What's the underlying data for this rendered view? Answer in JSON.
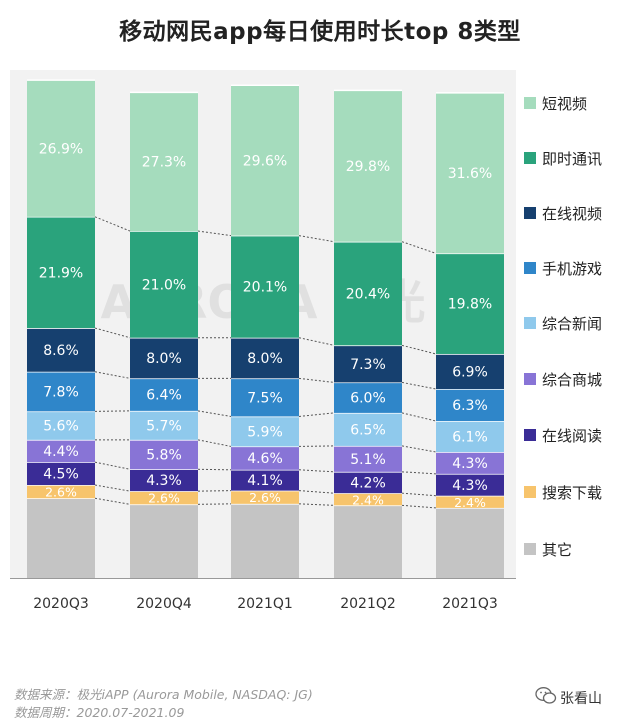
{
  "title": "移动网民app每日使用时长top 8类型",
  "footer": {
    "source": "数据来源：极光iAPP (Aurora Mobile, NASDAQ: JG)",
    "period": "数据周期：2020.07-2021.09",
    "brand": "张看山",
    "icon": "wechat-icon"
  },
  "watermark": "AURORA 极光",
  "chart_data": {
    "type": "bar",
    "stacked": true,
    "percent_stacked": true,
    "categories": [
      "2020Q3",
      "2020Q4",
      "2021Q1",
      "2021Q2",
      "2021Q3"
    ],
    "legend_position": "right",
    "series": [
      {
        "name": "其它",
        "color": "#c4c4c4",
        "values": [
          15.7,
          14.5,
          14.6,
          14.3,
          13.8
        ],
        "labels": [
          "",
          "",
          "",
          "",
          ""
        ]
      },
      {
        "name": "搜索下载",
        "color": "#f7c46c",
        "values": [
          2.6,
          2.6,
          2.6,
          2.4,
          2.4
        ],
        "labels": [
          "2.6%",
          "2.6%",
          "2.6%",
          "2.4%",
          "2.4%"
        ]
      },
      {
        "name": "在线阅读",
        "color": "#3a2c96",
        "values": [
          4.5,
          4.3,
          4.1,
          4.2,
          4.3
        ],
        "labels": [
          "4.5%",
          "4.3%",
          "4.1%",
          "4.2%",
          "4.3%"
        ]
      },
      {
        "name": "综合商城",
        "color": "#8874d6",
        "values": [
          4.4,
          5.8,
          4.6,
          5.1,
          4.3
        ],
        "labels": [
          "4.4%",
          "5.8%",
          "4.6%",
          "5.1%",
          "4.3%"
        ]
      },
      {
        "name": "综合新闻",
        "color": "#8fc9ec",
        "values": [
          5.6,
          5.7,
          5.9,
          6.5,
          6.1
        ],
        "labels": [
          "5.6%",
          "5.7%",
          "5.9%",
          "6.5%",
          "6.1%"
        ]
      },
      {
        "name": "手机游戏",
        "color": "#2f86c9",
        "values": [
          7.8,
          6.4,
          7.5,
          6.0,
          6.3
        ],
        "labels": [
          "7.8%",
          "6.4%",
          "7.5%",
          "6.0%",
          "6.3%"
        ]
      },
      {
        "name": "在线视频",
        "color": "#16406f",
        "values": [
          8.6,
          8.0,
          8.0,
          7.3,
          6.9
        ],
        "labels": [
          "8.6%",
          "8.0%",
          "8.0%",
          "7.3%",
          "6.9%"
        ]
      },
      {
        "name": "即时通讯",
        "color": "#2aa37c",
        "values": [
          21.9,
          21.0,
          20.1,
          20.4,
          19.8
        ],
        "labels": [
          "21.9%",
          "21.0%",
          "20.1%",
          "20.4%",
          "19.8%"
        ]
      },
      {
        "name": "短视频",
        "color": "#a5dcbd",
        "values": [
          26.9,
          27.3,
          29.6,
          29.8,
          31.6
        ],
        "labels": [
          "26.9%",
          "27.3%",
          "29.6%",
          "29.8%",
          "31.6%"
        ]
      }
    ],
    "legend_order": [
      "短视频",
      "即时通讯",
      "在线视频",
      "手机游戏",
      "综合新闻",
      "综合商城",
      "在线阅读",
      "搜索下载",
      "其它"
    ],
    "ylim": [
      0,
      100
    ],
    "grid": false,
    "connector_lines": "dashed"
  }
}
